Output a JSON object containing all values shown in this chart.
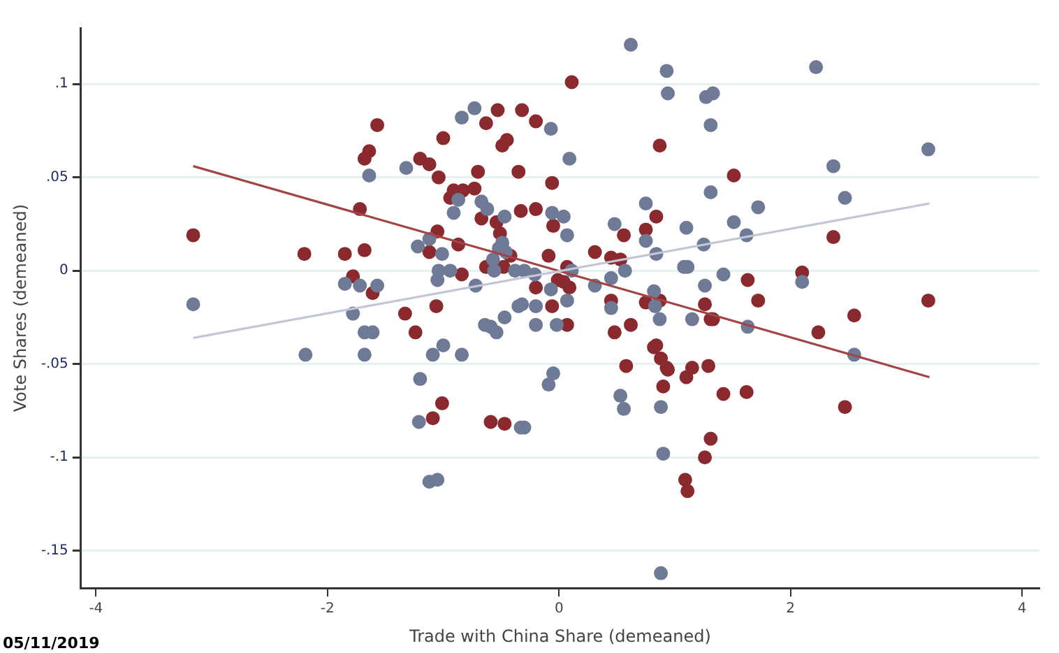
{
  "chart_data": {
    "type": "scatter",
    "xlabel": "Trade with China Share (demeaned)",
    "ylabel": "Vote Shares (demeaned)",
    "annotations": [
      "05/11/2019"
    ],
    "xlim": [
      -4.13,
      4.15
    ],
    "ylim": [
      -0.17,
      0.13
    ],
    "xticks": [
      -4,
      -2,
      0,
      2,
      4
    ],
    "yticks": [
      {
        "value": -0.15,
        "label": "-.15"
      },
      {
        "value": -0.1,
        "label": "-.1"
      },
      {
        "value": -0.05,
        "label": "-.05"
      },
      {
        "value": 0,
        "label": "0"
      },
      {
        "value": 0.05,
        "label": ".05"
      },
      {
        "value": 0.1,
        "label": ".1"
      }
    ],
    "grid": "y",
    "legend": false,
    "series": [
      {
        "marker": "circle",
        "color": "#6e7a96",
        "x": [
          -3.16,
          -2.19,
          -1.85,
          -1.72,
          -1.57,
          -1.78,
          -1.68,
          -1.61,
          -1.68,
          -1.09,
          -1.0,
          -1.2,
          -1.21,
          -1.12,
          -1.05,
          -0.84,
          -0.72,
          -0.64,
          -0.59,
          -0.54,
          -0.47,
          -0.35,
          -1.05,
          -0.33,
          -1.64,
          -1.32,
          -0.84,
          -0.73,
          -0.87,
          -0.91,
          -0.67,
          -0.62,
          -0.47,
          -1.12,
          -1.22,
          -1.01,
          -0.49,
          -0.52,
          -0.46,
          -0.57,
          -1.04,
          -0.94,
          -0.56,
          -0.38,
          0.62,
          0.93,
          0.94,
          1.27,
          1.33,
          1.31,
          -0.07,
          0.09,
          2.22,
          3.19,
          2.37,
          2.47,
          1.31,
          1.72,
          0.75,
          -0.06,
          0.04,
          0.07,
          0.48,
          0.75,
          0.84,
          1.1,
          1.25,
          1.51,
          1.62,
          1.08,
          1.11,
          1.42,
          1.26,
          2.1,
          -0.3,
          -0.21,
          -0.07,
          0.11,
          0.31,
          0.45,
          0.57,
          0.82,
          0.07,
          -0.2,
          -0.32,
          0.45,
          0.83,
          -0.2,
          -0.02,
          0.87,
          1.15,
          1.63,
          2.55,
          -0.05,
          -0.09,
          0.53,
          0.56,
          0.88,
          -0.3,
          0.9,
          0.88
        ],
        "values": [
          -0.018,
          -0.045,
          -0.007,
          -0.008,
          -0.008,
          -0.023,
          -0.033,
          -0.033,
          -0.045,
          -0.045,
          -0.04,
          -0.058,
          -0.081,
          -0.113,
          -0.112,
          -0.045,
          -0.008,
          -0.029,
          -0.03,
          -0.033,
          -0.025,
          -0.019,
          -0.005,
          -0.084,
          0.051,
          0.055,
          0.082,
          0.087,
          0.038,
          0.031,
          0.037,
          0.033,
          0.029,
          0.017,
          0.013,
          0.009,
          0.015,
          0.012,
          0.01,
          0.006,
          0,
          0,
          0,
          0,
          0.121,
          0.107,
          0.095,
          0.093,
          0.095,
          0.078,
          0.076,
          0.06,
          0.109,
          0.065,
          0.056,
          0.039,
          0.042,
          0.034,
          0.036,
          0.031,
          0.029,
          0.019,
          0.025,
          0.016,
          0.009,
          0.023,
          0.014,
          0.026,
          0.019,
          0.002,
          0.002,
          -0.002,
          -0.008,
          -0.006,
          0,
          -0.002,
          -0.01,
          0,
          -0.008,
          -0.004,
          0,
          -0.011,
          -0.016,
          -0.019,
          -0.018,
          -0.02,
          -0.019,
          -0.029,
          -0.029,
          -0.026,
          -0.026,
          -0.03,
          -0.045,
          -0.055,
          -0.061,
          -0.067,
          -0.074,
          -0.073,
          -0.084,
          -0.098,
          -0.162
        ]
      },
      {
        "marker": "circle",
        "color": "#8b2a2e",
        "x": [
          -3.16,
          -2.2,
          -1.85,
          -1.68,
          -1.78,
          -1.61,
          -1.72,
          -1.68,
          -1.64,
          -1.57,
          -1.2,
          -1.12,
          -1.04,
          -1.0,
          -0.63,
          -0.53,
          -0.32,
          -0.49,
          -0.45,
          -0.7,
          -0.91,
          -0.83,
          -0.73,
          -0.94,
          -0.35,
          -0.33,
          -1.05,
          -0.87,
          -0.67,
          -0.54,
          -0.51,
          -1.12,
          -0.84,
          -0.63,
          -0.48,
          -0.42,
          -1.33,
          -1.24,
          -1.06,
          -1.01,
          -1.09,
          -0.59,
          -0.47,
          0.11,
          -0.2,
          0.87,
          1.51,
          -0.06,
          -0.2,
          -0.05,
          0.56,
          0.75,
          0.84,
          0.31,
          0.45,
          0.53,
          -0.09,
          0.07,
          2.37,
          2.1,
          1.63,
          -0.2,
          -0.01,
          0.04,
          0.09,
          -0.06,
          0.45,
          0.75,
          1.26,
          1.72,
          3.19,
          0.07,
          0.48,
          0.62,
          0.87,
          1.31,
          1.33,
          2.24,
          2.55,
          0.58,
          0.82,
          0.84,
          0.88,
          0.93,
          0.94,
          0.9,
          1.1,
          1.15,
          1.29,
          1.42,
          1.62,
          2.47,
          1.31,
          1.26,
          1.09,
          1.11
        ],
        "values": [
          0.019,
          0.009,
          0.009,
          0.011,
          -0.003,
          -0.012,
          0.033,
          0.06,
          0.064,
          0.078,
          0.06,
          0.057,
          0.05,
          0.071,
          0.079,
          0.086,
          0.086,
          0.067,
          0.07,
          0.053,
          0.043,
          0.043,
          0.044,
          0.039,
          0.053,
          0.032,
          0.021,
          0.014,
          0.028,
          0.026,
          0.02,
          0.01,
          -0.002,
          0.002,
          0.002,
          0.008,
          -0.023,
          -0.033,
          -0.019,
          -0.071,
          -0.079,
          -0.081,
          -0.082,
          0.101,
          0.08,
          0.067,
          0.051,
          0.047,
          0.033,
          0.024,
          0.019,
          0.022,
          0.029,
          0.01,
          0.007,
          0.006,
          0.008,
          0.002,
          0.018,
          -0.001,
          -0.005,
          -0.009,
          -0.005,
          -0.006,
          -0.009,
          -0.019,
          -0.016,
          -0.017,
          -0.018,
          -0.016,
          -0.016,
          -0.029,
          -0.033,
          -0.029,
          -0.016,
          -0.026,
          -0.026,
          -0.033,
          -0.024,
          -0.051,
          -0.041,
          -0.04,
          -0.047,
          -0.052,
          -0.053,
          -0.062,
          -0.057,
          -0.052,
          -0.051,
          -0.066,
          -0.065,
          -0.073,
          -0.09,
          -0.1,
          -0.112,
          -0.118
        ]
      },
      {
        "type": "line",
        "marker": "none",
        "color": "#c3c6d4",
        "x": [
          -3.16,
          3.2
        ],
        "values": [
          -0.036,
          0.036
        ]
      },
      {
        "type": "line",
        "marker": "none",
        "color": "#a34444",
        "x": [
          -3.16,
          3.2
        ],
        "values": [
          0.056,
          -0.057
        ]
      }
    ]
  }
}
